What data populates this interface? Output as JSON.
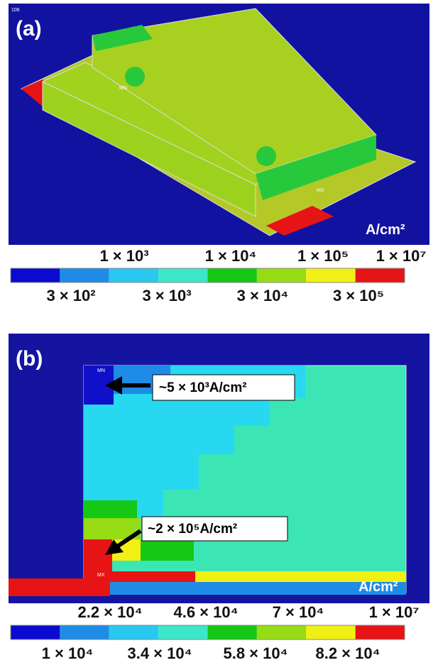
{
  "figure": {
    "panels": [
      {
        "label": "(a)",
        "unit": "A/cm²",
        "markers": [
          "106",
          "MN",
          "MX"
        ],
        "colorbar": {
          "top_labels": [
            "1 × 10³",
            "1 × 10⁴",
            "1 × 10⁵",
            "1 × 10⁷"
          ],
          "bottom_labels": [
            "3 × 10²",
            "3 × 10³",
            "3 × 10⁴",
            "3 × 10⁵"
          ]
        }
      },
      {
        "label": "(b)",
        "unit": "A/cm²",
        "markers": [
          "MN",
          "MX"
        ],
        "annotations": [
          "~5 × 10³A/cm²",
          "~2 × 10⁵A/cm²"
        ],
        "colorbar": {
          "top_labels": [
            "2.2 × 10⁴",
            "4.6 × 10⁴",
            "7 × 10⁴",
            "1 × 10⁷"
          ],
          "bottom_labels": [
            "1 × 10⁴",
            "3.4 × 10⁴",
            "5.8 × 10⁴",
            "8.2 × 10⁴"
          ]
        }
      }
    ]
  }
}
